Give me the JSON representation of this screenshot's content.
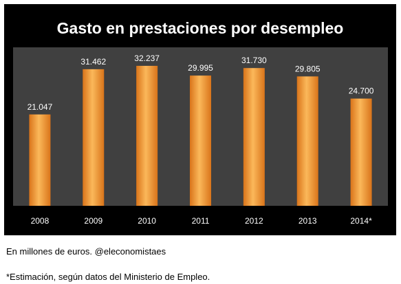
{
  "chart_data": {
    "type": "bar",
    "title": "Gasto en prestaciones por desempleo",
    "categories": [
      "2008",
      "2009",
      "2010",
      "2011",
      "2012",
      "2013",
      "2014*"
    ],
    "values": [
      21047,
      31462,
      32237,
      29995,
      31730,
      29805,
      24700
    ],
    "value_labels": [
      "21.047",
      "31.462",
      "32.237",
      "29.995",
      "31.730",
      "29.805",
      "24.700"
    ],
    "ylim": [
      0,
      36500
    ],
    "grid": false,
    "legend": "none",
    "colors": {
      "background": "#000000",
      "plot_area": "#404040",
      "bar": "#f59323",
      "bar_light": "#fbb85a",
      "bar_dark": "#d9741a",
      "text": "#ffffff"
    }
  },
  "notes": {
    "source": "En millones de euros. @eleconomistaes",
    "estimate": "*Estimación, según datos del Ministerio de Empleo."
  }
}
